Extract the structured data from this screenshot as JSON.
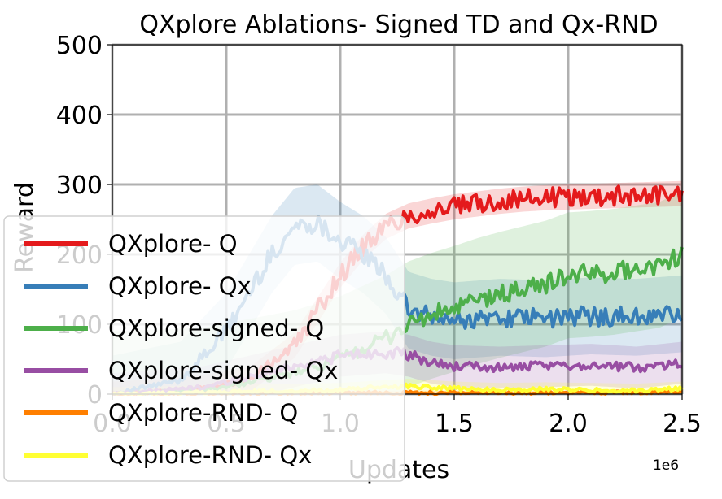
{
  "chart_data": {
    "type": "line",
    "title": "QXplore Ablations- Signed TD and Qx-RND",
    "xlabel": "Updates",
    "ylabel": "Reward",
    "x_offset_label": "1e6",
    "xlim": [
      0,
      2.5
    ],
    "ylim": [
      0,
      500
    ],
    "x_ticks": [
      0.0,
      0.5,
      1.0,
      1.5,
      2.0,
      2.5
    ],
    "x_tick_labels": [
      "0.0",
      "0.5",
      "1.0",
      "1.5",
      "2.0",
      "2.5"
    ],
    "y_ticks": [
      0,
      100,
      200,
      300,
      400,
      500
    ],
    "y_tick_labels": [
      "0",
      "100",
      "200",
      "300",
      "400",
      "500"
    ],
    "grid": true,
    "legend_position": "bottom-left",
    "series": [
      {
        "name": "QXplore- Q",
        "color": "#e41a1c",
        "x": [
          0.0,
          0.3,
          0.6,
          0.8,
          0.9,
          1.0,
          1.1,
          1.2,
          1.3,
          1.4,
          1.5,
          1.6,
          1.7,
          1.8,
          1.9,
          2.0,
          2.1,
          2.2,
          2.3,
          2.4,
          2.5
        ],
        "y": [
          0,
          5,
          20,
          70,
          120,
          170,
          210,
          240,
          255,
          262,
          268,
          272,
          276,
          279,
          281,
          282,
          283,
          284,
          285,
          286,
          287
        ],
        "band": 18
      },
      {
        "name": "QXplore- Qx",
        "color": "#377eb8",
        "x": [
          0.0,
          0.3,
          0.5,
          0.7,
          0.8,
          0.9,
          1.0,
          1.1,
          1.2,
          1.3,
          1.4,
          1.5,
          1.7,
          1.9,
          2.1,
          2.3,
          2.5
        ],
        "y": [
          0,
          20,
          90,
          200,
          240,
          245,
          220,
          200,
          170,
          120,
          110,
          105,
          110,
          108,
          112,
          110,
          115
        ],
        "band": 55
      },
      {
        "name": "QXplore-signed- Q",
        "color": "#4daf4a",
        "x": [
          0.0,
          0.4,
          0.8,
          1.0,
          1.2,
          1.3,
          1.4,
          1.5,
          1.6,
          1.7,
          1.8,
          1.9,
          2.0,
          2.1,
          2.2,
          2.3,
          2.4,
          2.5
        ],
        "y": [
          0,
          5,
          30,
          50,
          80,
          100,
          112,
          122,
          133,
          142,
          150,
          158,
          170,
          172,
          175,
          180,
          185,
          200
        ],
        "band": 90
      },
      {
        "name": "QXplore-signed- Qx",
        "color": "#984ea3",
        "x": [
          0.0,
          0.4,
          0.8,
          1.0,
          1.2,
          1.3,
          1.4,
          1.5,
          1.7,
          1.9,
          2.1,
          2.3,
          2.5
        ],
        "y": [
          0,
          10,
          40,
          55,
          60,
          55,
          45,
          40,
          38,
          40,
          42,
          38,
          45
        ],
        "band": 30
      },
      {
        "name": "QXplore-RND- Q",
        "color": "#ff7f00",
        "x": [
          0.0,
          0.5,
          1.0,
          1.5,
          2.0,
          2.5
        ],
        "y": [
          0,
          1,
          2,
          2,
          2,
          3
        ],
        "band": 3
      },
      {
        "name": "QXplore-RND- Qx",
        "color": "#ffff33",
        "x": [
          0.0,
          0.5,
          1.0,
          1.2,
          1.3,
          1.5,
          1.7,
          1.9,
          2.1,
          2.3,
          2.5
        ],
        "y": [
          0,
          3,
          6,
          10,
          12,
          8,
          6,
          7,
          6,
          5,
          8
        ],
        "band": 10
      }
    ]
  }
}
